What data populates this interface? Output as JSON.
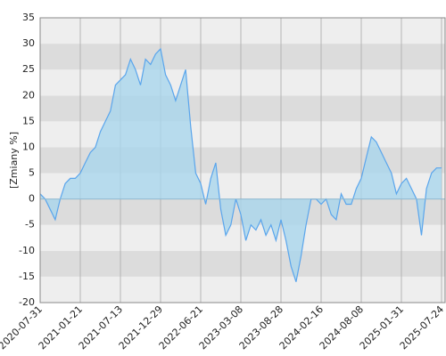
{
  "chart_data": {
    "type": "area",
    "y_label": "[Zmiany %]",
    "categories": [
      "2020-07-31",
      null,
      null,
      null,
      null,
      null,
      null,
      null,
      "2021-01-21",
      null,
      null,
      null,
      null,
      null,
      null,
      null,
      "2021-07-13",
      null,
      null,
      null,
      null,
      null,
      null,
      null,
      "2021-12-29",
      null,
      null,
      null,
      null,
      null,
      null,
      null,
      "2022-06-21",
      null,
      null,
      null,
      null,
      null,
      null,
      null,
      "2023-03-08",
      null,
      null,
      null,
      null,
      null,
      null,
      null,
      "2023-08-28",
      null,
      null,
      null,
      null,
      null,
      null,
      null,
      "2024-02-16",
      null,
      null,
      null,
      null,
      null,
      null,
      null,
      "2024-08-08",
      null,
      null,
      null,
      null,
      null,
      null,
      null,
      "2025-01-31",
      null,
      null,
      null,
      null,
      null,
      null,
      null,
      "2025-07-24"
    ],
    "series": [
      {
        "color": "#5aa5ec",
        "fill": "#a9d6ec",
        "values": [
          1,
          0,
          -2,
          -4,
          0,
          3,
          4,
          4,
          5,
          7,
          9,
          10,
          13,
          15,
          17,
          22,
          23,
          24,
          27,
          25,
          22,
          27,
          26,
          28,
          29,
          24,
          22,
          19,
          22,
          25,
          14,
          5,
          3,
          -1,
          4,
          7,
          -2,
          -7,
          -5,
          0,
          -3,
          -8,
          -5,
          -6,
          -4,
          -7,
          -5,
          -8,
          -4,
          -8,
          -13,
          -16,
          -11,
          -5,
          0,
          0,
          -1,
          0,
          -3,
          -4,
          1,
          -1,
          -1,
          2,
          4,
          8,
          12,
          11,
          9,
          7,
          5,
          1,
          3,
          4,
          2,
          0,
          -7,
          2,
          5,
          6,
          6
        ]
      }
    ],
    "ylim": [
      -20,
      35
    ],
    "yticks": [
      -20,
      -15,
      -10,
      -5,
      0,
      5,
      10,
      15,
      20,
      25,
      30,
      35
    ],
    "grid": true
  }
}
